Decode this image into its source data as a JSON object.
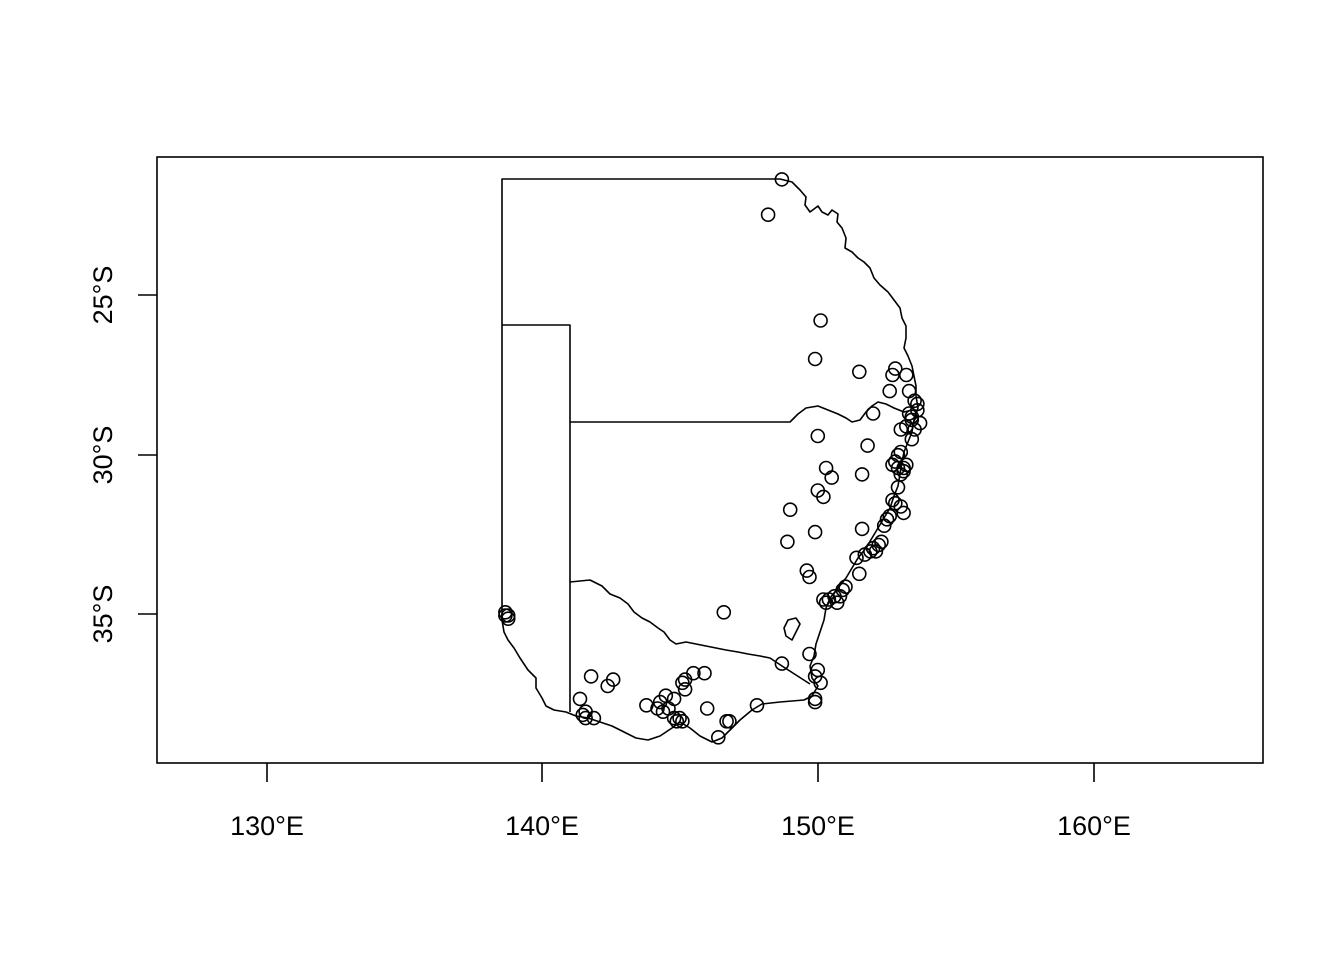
{
  "map": {
    "x_axis_tick_labels": [
      "130°E",
      "140°E",
      "150°E",
      "160°E"
    ],
    "y_axis_tick_labels": [
      "25°S",
      "30°S",
      "35°S"
    ],
    "marker_style": "open-circle",
    "line_color": "#000000"
  },
  "chart_data": {
    "type": "scatter",
    "title": "",
    "xlabel": "",
    "ylabel": "",
    "xlim": [
      126,
      166
    ],
    "ylim": [
      -39.5,
      -20.6
    ],
    "x_ticks": [
      130,
      140,
      150,
      160
    ],
    "y_ticks": [
      -25,
      -30,
      -35
    ],
    "grid": false,
    "legend": "none",
    "series": [
      {
        "x": [
          148.6,
          148.1,
          150.0,
          149.8,
          151.4,
          152.7,
          152.6,
          152.5,
          153.1,
          153.2,
          153.4,
          153.5,
          153.3,
          153.5,
          153.6,
          153.4,
          153.1,
          153.2,
          153.3,
          151.9,
          152.9,
          153.3,
          149.9,
          151.7,
          152.9,
          152.8,
          152.7,
          152.6,
          152.8,
          153.0,
          152.9,
          153.1,
          153.0,
          150.2,
          150.4,
          149.9,
          150.1,
          151.5,
          152.8,
          152.6,
          152.9,
          152.7,
          153.0,
          148.9,
          148.8,
          152.4,
          152.3,
          152.5,
          149.8,
          151.5,
          152.1,
          152.0,
          151.9,
          151.8,
          152.2,
          151.6,
          151.3,
          151.4,
          149.5,
          149.6,
          150.9,
          150.8,
          150.7,
          150.6,
          150.5,
          150.3,
          150.2,
          150.1,
          146.5,
          138.6,
          138.7,
          138.7,
          138.6,
          148.6,
          149.6,
          149.9,
          149.8,
          150.0,
          149.8,
          147.7,
          141.7,
          142.5,
          142.3,
          141.3,
          141.5,
          141.4,
          141.5,
          141.8,
          143.7,
          144.2,
          144.4,
          144.7,
          144.3,
          144.1,
          144.5,
          145.1,
          145.1,
          145.0,
          144.7,
          144.8,
          145.4,
          145.8,
          145.9,
          144.9,
          145.0,
          146.6,
          146.7,
          146.3,
          149.8
        ],
        "y": [
          -21.3,
          -22.4,
          -25.7,
          -26.9,
          -27.3,
          -27.2,
          -27.4,
          -27.9,
          -27.4,
          -27.9,
          -28.2,
          -28.5,
          -28.7,
          -28.3,
          -28.9,
          -29.1,
          -29.0,
          -28.6,
          -29.4,
          -28.6,
          -29.1,
          -28.8,
          -29.3,
          -29.6,
          -29.8,
          -29.9,
          -30.1,
          -30.2,
          -30.3,
          -30.3,
          -30.5,
          -30.2,
          -30.4,
          -30.3,
          -30.6,
          -31.0,
          -31.2,
          -30.5,
          -30.9,
          -31.3,
          -31.5,
          -31.4,
          -31.7,
          -31.6,
          -32.6,
          -31.9,
          -32.1,
          -31.8,
          -32.3,
          -32.2,
          -32.7,
          -32.9,
          -32.8,
          -32.9,
          -32.6,
          -33.0,
          -33.1,
          -33.6,
          -33.5,
          -33.7,
          -34.0,
          -34.1,
          -34.3,
          -34.5,
          -34.3,
          -34.4,
          -34.5,
          -34.4,
          -34.8,
          -34.8,
          -34.9,
          -35.0,
          -34.9,
          -36.4,
          -36.1,
          -36.6,
          -36.8,
          -37.0,
          -37.6,
          -37.7,
          -36.8,
          -36.9,
          -37.1,
          -37.5,
          -37.9,
          -38.0,
          -38.1,
          -38.1,
          -37.7,
          -37.6,
          -37.4,
          -37.5,
          -37.9,
          -37.8,
          -37.8,
          -37.2,
          -36.9,
          -37.0,
          -38.1,
          -38.2,
          -36.7,
          -36.7,
          -37.8,
          -38.1,
          -38.2,
          -38.2,
          -38.2,
          -38.7,
          -37.5
        ]
      }
    ]
  }
}
